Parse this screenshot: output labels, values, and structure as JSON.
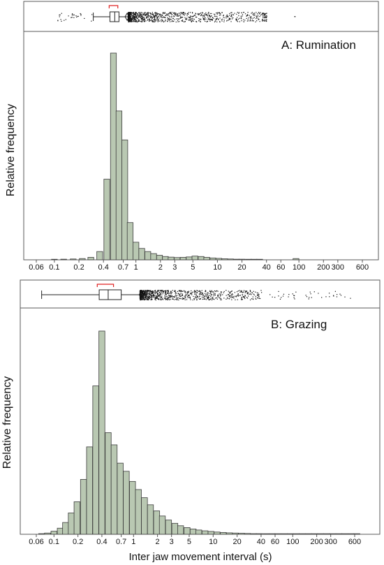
{
  "chart_data": [
    {
      "type": "bar",
      "panel": "A",
      "title": "A: Rumination",
      "ylabel": "Relative frequency",
      "xlabel": "",
      "x_scale": "log",
      "x_ticks": [
        "0.06",
        "0.1",
        "0.2",
        "0.4",
        "0.7",
        "1",
        "2",
        "3",
        "5",
        "10",
        "20",
        "40",
        "60",
        "100",
        "200",
        "300",
        "600"
      ],
      "bins": [
        {
          "x": 0.1,
          "y": 0.002
        },
        {
          "x": 0.13,
          "y": 0.003
        },
        {
          "x": 0.17,
          "y": 0.004
        },
        {
          "x": 0.22,
          "y": 0.006
        },
        {
          "x": 0.28,
          "y": 0.012
        },
        {
          "x": 0.36,
          "y": 0.04
        },
        {
          "x": 0.44,
          "y": 0.39
        },
        {
          "x": 0.53,
          "y": 1.0
        },
        {
          "x": 0.62,
          "y": 0.72
        },
        {
          "x": 0.73,
          "y": 0.58
        },
        {
          "x": 0.85,
          "y": 0.18
        },
        {
          "x": 1.0,
          "y": 0.085
        },
        {
          "x": 1.18,
          "y": 0.055
        },
        {
          "x": 1.4,
          "y": 0.04
        },
        {
          "x": 1.65,
          "y": 0.03
        },
        {
          "x": 1.95,
          "y": 0.022
        },
        {
          "x": 2.3,
          "y": 0.016
        },
        {
          "x": 2.7,
          "y": 0.013
        },
        {
          "x": 3.2,
          "y": 0.011
        },
        {
          "x": 3.8,
          "y": 0.012
        },
        {
          "x": 4.5,
          "y": 0.014
        },
        {
          "x": 5.3,
          "y": 0.018
        },
        {
          "x": 6.3,
          "y": 0.016
        },
        {
          "x": 7.4,
          "y": 0.012
        },
        {
          "x": 8.8,
          "y": 0.009
        },
        {
          "x": 10.4,
          "y": 0.007
        },
        {
          "x": 12.3,
          "y": 0.005
        },
        {
          "x": 14.5,
          "y": 0.004
        },
        {
          "x": 17,
          "y": 0.003
        },
        {
          "x": 20,
          "y": 0.003
        },
        {
          "x": 24,
          "y": 0.002
        },
        {
          "x": 28,
          "y": 0.002
        },
        {
          "x": 33,
          "y": 0.002
        },
        {
          "x": 92,
          "y": 0.006
        }
      ],
      "boxplot": {
        "whisker_low": 0.3,
        "q1": 0.48,
        "median": 0.55,
        "q3": 0.62,
        "whisker_high": 0.8,
        "mean": 0.78,
        "shortest_half": [
          0.47,
          0.6
        ]
      }
    },
    {
      "type": "bar",
      "panel": "B",
      "title": "B: Grazing",
      "ylabel": "Relative frequency",
      "xlabel": "Inter jaw movement interval (s)",
      "x_scale": "log",
      "x_ticks": [
        "0.06",
        "0.1",
        "0.2",
        "0.4",
        "0.7",
        "1",
        "2",
        "3",
        "5",
        "10",
        "20",
        "40",
        "60",
        "100",
        "200",
        "300",
        "600"
      ],
      "bins": [
        {
          "x": 0.07,
          "y": 0.003
        },
        {
          "x": 0.083,
          "y": 0.006
        },
        {
          "x": 0.1,
          "y": 0.015
        },
        {
          "x": 0.12,
          "y": 0.03
        },
        {
          "x": 0.14,
          "y": 0.058
        },
        {
          "x": 0.165,
          "y": 0.105
        },
        {
          "x": 0.195,
          "y": 0.16
        },
        {
          "x": 0.235,
          "y": 0.27
        },
        {
          "x": 0.28,
          "y": 0.43
        },
        {
          "x": 0.335,
          "y": 0.73
        },
        {
          "x": 0.4,
          "y": 1.0
        },
        {
          "x": 0.48,
          "y": 0.5
        },
        {
          "x": 0.57,
          "y": 0.44
        },
        {
          "x": 0.68,
          "y": 0.35
        },
        {
          "x": 0.81,
          "y": 0.31
        },
        {
          "x": 0.97,
          "y": 0.26
        },
        {
          "x": 1.15,
          "y": 0.22
        },
        {
          "x": 1.37,
          "y": 0.18
        },
        {
          "x": 1.63,
          "y": 0.145
        },
        {
          "x": 1.95,
          "y": 0.115
        },
        {
          "x": 2.3,
          "y": 0.09
        },
        {
          "x": 2.75,
          "y": 0.07
        },
        {
          "x": 3.3,
          "y": 0.054
        },
        {
          "x": 3.9,
          "y": 0.042
        },
        {
          "x": 4.7,
          "y": 0.033
        },
        {
          "x": 5.6,
          "y": 0.026
        },
        {
          "x": 6.6,
          "y": 0.021
        },
        {
          "x": 7.9,
          "y": 0.017
        },
        {
          "x": 9.4,
          "y": 0.014
        },
        {
          "x": 11.2,
          "y": 0.011
        },
        {
          "x": 13.4,
          "y": 0.009
        },
        {
          "x": 16,
          "y": 0.007
        },
        {
          "x": 19,
          "y": 0.006
        },
        {
          "x": 22.7,
          "y": 0.005
        },
        {
          "x": 27,
          "y": 0.004
        },
        {
          "x": 32,
          "y": 0.003
        },
        {
          "x": 38,
          "y": 0.003
        },
        {
          "x": 46,
          "y": 0.002
        },
        {
          "x": 55,
          "y": 0.002
        },
        {
          "x": 65,
          "y": 0.002
        },
        {
          "x": 78,
          "y": 0.002
        },
        {
          "x": 93,
          "y": 0.002
        },
        {
          "x": 111,
          "y": 0.001
        },
        {
          "x": 132,
          "y": 0.001
        },
        {
          "x": 158,
          "y": 0.001
        },
        {
          "x": 188,
          "y": 0.001
        },
        {
          "x": 224,
          "y": 0.001
        },
        {
          "x": 267,
          "y": 0.001
        },
        {
          "x": 318,
          "y": 0.001
        },
        {
          "x": 380,
          "y": 0.001
        },
        {
          "x": 450,
          "y": 0.001
        },
        {
          "x": 540,
          "y": 0.001
        },
        {
          "x": 640,
          "y": 0.001
        }
      ],
      "boxplot": {
        "whisker_low": 0.07,
        "q1": 0.37,
        "median": 0.48,
        "q3": 0.7,
        "whisker_high": 1.2,
        "mean": 1.25,
        "shortest_half": [
          0.35,
          0.56
        ]
      }
    }
  ]
}
